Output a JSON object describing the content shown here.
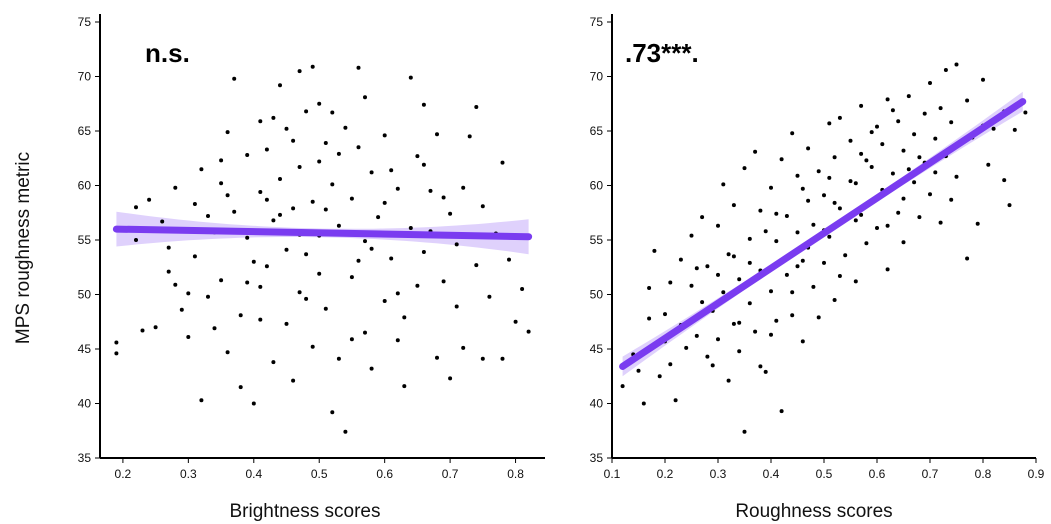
{
  "figure": {
    "ylabel": "MPS roughness metric"
  },
  "chart_data": [
    {
      "type": "scatter",
      "title": "",
      "annotation": "n.s.",
      "xlabel": "Brightness scores",
      "ylabel": "MPS roughness metric",
      "xlim": [
        0.165,
        0.845
      ],
      "ylim": [
        35,
        75
      ],
      "xticks": [
        "0.2",
        "0.3",
        "0.4",
        "0.5",
        "0.6",
        "0.7",
        "0.8"
      ],
      "yticks": [
        "35",
        "40",
        "45",
        "50",
        "55",
        "60",
        "65",
        "70",
        "75"
      ],
      "grid": false,
      "colors": {
        "points": "#000000",
        "fit": "#7a3cf0",
        "band": "#d9c9fb"
      },
      "fit": {
        "x": [
          0.19,
          0.82
        ],
        "y": [
          56.0,
          55.3
        ],
        "ci_halfwidth_ends": 1.6,
        "ci_halfwidth_center": 0.4
      },
      "points": [
        [
          0.19,
          45.6
        ],
        [
          0.19,
          44.6
        ],
        [
          0.22,
          58
        ],
        [
          0.22,
          55
        ],
        [
          0.23,
          46.7
        ],
        [
          0.25,
          47
        ],
        [
          0.24,
          58.7
        ],
        [
          0.26,
          56.7
        ],
        [
          0.27,
          54.3
        ],
        [
          0.27,
          52.1
        ],
        [
          0.28,
          59.8
        ],
        [
          0.28,
          50.9
        ],
        [
          0.29,
          48.6
        ],
        [
          0.3,
          50.1
        ],
        [
          0.3,
          46.1
        ],
        [
          0.31,
          58.3
        ],
        [
          0.31,
          53.5
        ],
        [
          0.32,
          61.5
        ],
        [
          0.32,
          40.3
        ],
        [
          0.33,
          57.2
        ],
        [
          0.33,
          49.8
        ],
        [
          0.34,
          55.7
        ],
        [
          0.34,
          46.9
        ],
        [
          0.35,
          60.2
        ],
        [
          0.35,
          51.3
        ],
        [
          0.36,
          64.9
        ],
        [
          0.36,
          44.7
        ],
        [
          0.37,
          69.8
        ],
        [
          0.37,
          57.6
        ],
        [
          0.38,
          48.1
        ],
        [
          0.38,
          41.5
        ],
        [
          0.39,
          62.8
        ],
        [
          0.39,
          55.2
        ],
        [
          0.4,
          53
        ],
        [
          0.4,
          40
        ],
        [
          0.41,
          65.9
        ],
        [
          0.41,
          59.4
        ],
        [
          0.41,
          47.7
        ],
        [
          0.42,
          63.3
        ],
        [
          0.42,
          52.6
        ],
        [
          0.43,
          66.2
        ],
        [
          0.43,
          56.8
        ],
        [
          0.43,
          43.8
        ],
        [
          0.44,
          69.2
        ],
        [
          0.44,
          60.6
        ],
        [
          0.45,
          54.1
        ],
        [
          0.45,
          47.3
        ],
        [
          0.46,
          64.1
        ],
        [
          0.46,
          57.9
        ],
        [
          0.46,
          42.1
        ],
        [
          0.47,
          70.5
        ],
        [
          0.47,
          61.7
        ],
        [
          0.47,
          50.2
        ],
        [
          0.48,
          66.8
        ],
        [
          0.48,
          53.7
        ],
        [
          0.49,
          70.9
        ],
        [
          0.49,
          58.5
        ],
        [
          0.49,
          45.2
        ],
        [
          0.5,
          67.5
        ],
        [
          0.5,
          62.2
        ],
        [
          0.5,
          55.4
        ],
        [
          0.51,
          63.9
        ],
        [
          0.51,
          48.7
        ],
        [
          0.52,
          39.2
        ],
        [
          0.52,
          60.1
        ],
        [
          0.53,
          56.3
        ],
        [
          0.53,
          44.1
        ],
        [
          0.54,
          37.4
        ],
        [
          0.54,
          65.3
        ],
        [
          0.55,
          58.8
        ],
        [
          0.55,
          51.6
        ],
        [
          0.56,
          70.8
        ],
        [
          0.56,
          63.5
        ],
        [
          0.57,
          54.9
        ],
        [
          0.57,
          46.5
        ],
        [
          0.58,
          61.2
        ],
        [
          0.58,
          43.2
        ],
        [
          0.59,
          57.1
        ],
        [
          0.6,
          49.4
        ],
        [
          0.6,
          64.6
        ],
        [
          0.61,
          53.3
        ],
        [
          0.62,
          59.7
        ],
        [
          0.62,
          45.8
        ],
        [
          0.63,
          41.6
        ],
        [
          0.64,
          69.9
        ],
        [
          0.64,
          56.1
        ],
        [
          0.65,
          62.7
        ],
        [
          0.65,
          50.8
        ],
        [
          0.66,
          67.4
        ],
        [
          0.66,
          53.9
        ],
        [
          0.67,
          59.5
        ],
        [
          0.68,
          44.2
        ],
        [
          0.68,
          64.7
        ],
        [
          0.69,
          51.2
        ],
        [
          0.7,
          42.3
        ],
        [
          0.7,
          57.4
        ],
        [
          0.71,
          48.9
        ],
        [
          0.72,
          59.8
        ],
        [
          0.72,
          45.1
        ],
        [
          0.73,
          64.5
        ],
        [
          0.74,
          67.2
        ],
        [
          0.74,
          52.7
        ],
        [
          0.75,
          44.1
        ],
        [
          0.75,
          58.1
        ],
        [
          0.76,
          49.8
        ],
        [
          0.77,
          55.6
        ],
        [
          0.78,
          62.1
        ],
        [
          0.78,
          44.1
        ],
        [
          0.79,
          53.2
        ],
        [
          0.8,
          47.5
        ],
        [
          0.81,
          50.5
        ],
        [
          0.82,
          46.6
        ],
        [
          0.82,
          55.2
        ],
        [
          0.35,
          62.3
        ],
        [
          0.42,
          58.7
        ],
        [
          0.48,
          49.6
        ],
        [
          0.53,
          62.9
        ],
        [
          0.58,
          54.2
        ],
        [
          0.63,
          47.9
        ],
        [
          0.39,
          51.1
        ],
        [
          0.44,
          57.3
        ],
        [
          0.5,
          51.9
        ],
        [
          0.55,
          45.9
        ],
        [
          0.6,
          58.4
        ],
        [
          0.66,
          61.9
        ],
        [
          0.71,
          54.6
        ],
        [
          0.45,
          65.2
        ],
        [
          0.52,
          66.7
        ],
        [
          0.57,
          68.1
        ],
        [
          0.62,
          50.1
        ],
        [
          0.67,
          55.8
        ],
        [
          0.36,
          59.1
        ],
        [
          0.41,
          50.7
        ],
        [
          0.47,
          55.5
        ],
        [
          0.51,
          57.8
        ],
        [
          0.56,
          53.1
        ],
        [
          0.61,
          61.4
        ],
        [
          0.69,
          58.9
        ]
      ]
    },
    {
      "type": "scatter",
      "title": "",
      "annotation": ".73***.",
      "xlabel": "Roughness scores",
      "ylabel": "",
      "xlim": [
        0.1,
        0.9
      ],
      "ylim": [
        35,
        75
      ],
      "xticks": [
        "0.1",
        "0.2",
        "0.3",
        "0.4",
        "0.5",
        "0.6",
        "0.7",
        "0.8",
        "0.9"
      ],
      "yticks": [
        "35",
        "40",
        "45",
        "50",
        "55",
        "60",
        "65",
        "70",
        "75"
      ],
      "grid": false,
      "colors": {
        "points": "#000000",
        "fit": "#7a3cf0",
        "band": "#d9c9fb"
      },
      "fit": {
        "x": [
          0.12,
          0.875
        ],
        "y": [
          43.4,
          67.7
        ],
        "ci_halfwidth_ends": 0.9,
        "ci_halfwidth_center": 0.3
      },
      "points": [
        [
          0.12,
          41.6
        ],
        [
          0.14,
          44.5
        ],
        [
          0.15,
          43
        ],
        [
          0.16,
          40
        ],
        [
          0.17,
          47.8
        ],
        [
          0.17,
          50.6
        ],
        [
          0.18,
          54
        ],
        [
          0.19,
          42.5
        ],
        [
          0.2,
          45.7
        ],
        [
          0.2,
          48.2
        ],
        [
          0.21,
          51.1
        ],
        [
          0.21,
          43.6
        ],
        [
          0.22,
          40.3
        ],
        [
          0.23,
          47.2
        ],
        [
          0.23,
          53.2
        ],
        [
          0.24,
          45.1
        ],
        [
          0.25,
          50.8
        ],
        [
          0.25,
          55.4
        ],
        [
          0.26,
          46.2
        ],
        [
          0.27,
          49.3
        ],
        [
          0.27,
          57.1
        ],
        [
          0.28,
          44.3
        ],
        [
          0.28,
          52.6
        ],
        [
          0.29,
          48.5
        ],
        [
          0.3,
          56.3
        ],
        [
          0.3,
          45.9
        ],
        [
          0.31,
          50.2
        ],
        [
          0.31,
          60.1
        ],
        [
          0.32,
          53.7
        ],
        [
          0.32,
          42.1
        ],
        [
          0.33,
          47.3
        ],
        [
          0.33,
          58.2
        ],
        [
          0.34,
          51.4
        ],
        [
          0.34,
          44.8
        ],
        [
          0.35,
          61.6
        ],
        [
          0.35,
          37.4
        ],
        [
          0.36,
          55.1
        ],
        [
          0.36,
          49.2
        ],
        [
          0.37,
          46.6
        ],
        [
          0.37,
          63.1
        ],
        [
          0.38,
          57.7
        ],
        [
          0.38,
          52.2
        ],
        [
          0.39,
          42.9
        ],
        [
          0.4,
          59.8
        ],
        [
          0.4,
          50.3
        ],
        [
          0.41,
          54.9
        ],
        [
          0.41,
          47.6
        ],
        [
          0.42,
          62.4
        ],
        [
          0.42,
          39.3
        ],
        [
          0.43,
          57.2
        ],
        [
          0.43,
          51.8
        ],
        [
          0.44,
          64.8
        ],
        [
          0.44,
          48.1
        ],
        [
          0.45,
          55.7
        ],
        [
          0.45,
          60.9
        ],
        [
          0.46,
          53.1
        ],
        [
          0.46,
          45.7
        ],
        [
          0.47,
          58.6
        ],
        [
          0.47,
          63.4
        ],
        [
          0.48,
          50.7
        ],
        [
          0.48,
          56.4
        ],
        [
          0.49,
          61.3
        ],
        [
          0.49,
          47.9
        ],
        [
          0.5,
          59.1
        ],
        [
          0.5,
          52.9
        ],
        [
          0.51,
          65.7
        ],
        [
          0.51,
          55.3
        ],
        [
          0.52,
          62.6
        ],
        [
          0.52,
          49.5
        ],
        [
          0.53,
          57.9
        ],
        [
          0.53,
          66.2
        ],
        [
          0.54,
          53.6
        ],
        [
          0.55,
          60.4
        ],
        [
          0.55,
          64.1
        ],
        [
          0.56,
          56.8
        ],
        [
          0.56,
          51.2
        ],
        [
          0.57,
          62.9
        ],
        [
          0.57,
          67.3
        ],
        [
          0.58,
          58.3
        ],
        [
          0.58,
          54.7
        ],
        [
          0.59,
          61.7
        ],
        [
          0.6,
          65.4
        ],
        [
          0.6,
          56.1
        ],
        [
          0.61,
          63.8
        ],
        [
          0.61,
          59.6
        ],
        [
          0.62,
          67.9
        ],
        [
          0.62,
          52.3
        ],
        [
          0.63,
          61.1
        ],
        [
          0.64,
          65.9
        ],
        [
          0.64,
          57.5
        ],
        [
          0.65,
          63.2
        ],
        [
          0.65,
          54.8
        ],
        [
          0.66,
          68.2
        ],
        [
          0.67,
          60.3
        ],
        [
          0.67,
          64.7
        ],
        [
          0.68,
          57.1
        ],
        [
          0.69,
          66.6
        ],
        [
          0.69,
          62.1
        ],
        [
          0.7,
          59.2
        ],
        [
          0.7,
          69.4
        ],
        [
          0.71,
          64.3
        ],
        [
          0.72,
          67.1
        ],
        [
          0.72,
          56.6
        ],
        [
          0.73,
          70.6
        ],
        [
          0.73,
          62.7
        ],
        [
          0.74,
          65.8
        ],
        [
          0.75,
          60.8
        ],
        [
          0.75,
          71.1
        ],
        [
          0.76,
          63.9
        ],
        [
          0.77,
          53.3
        ],
        [
          0.77,
          67.8
        ],
        [
          0.78,
          64.4
        ],
        [
          0.79,
          56.5
        ],
        [
          0.8,
          65.5
        ],
        [
          0.8,
          69.7
        ],
        [
          0.81,
          61.9
        ],
        [
          0.82,
          65.2
        ],
        [
          0.84,
          60.5
        ],
        [
          0.84,
          66.8
        ],
        [
          0.85,
          58.2
        ],
        [
          0.86,
          65.1
        ],
        [
          0.88,
          66.7
        ],
        [
          0.38,
          43.4
        ],
        [
          0.44,
          50.2
        ],
        [
          0.5,
          55.9
        ],
        [
          0.56,
          60.2
        ],
        [
          0.62,
          56.3
        ],
        [
          0.68,
          62.6
        ],
        [
          0.3,
          51.8
        ],
        [
          0.36,
          52.9
        ],
        [
          0.41,
          57.4
        ],
        [
          0.47,
          54.3
        ],
        [
          0.53,
          51.7
        ],
        [
          0.59,
          64.9
        ],
        [
          0.65,
          58.8
        ],
        [
          0.71,
          61.2
        ],
        [
          0.29,
          43.5
        ],
        [
          0.34,
          47.4
        ],
        [
          0.4,
          46.3
        ],
        [
          0.46,
          59.7
        ],
        [
          0.52,
          58.4
        ],
        [
          0.58,
          62.3
        ],
        [
          0.63,
          66.9
        ],
        [
          0.26,
          52.4
        ],
        [
          0.33,
          53.5
        ],
        [
          0.39,
          55.8
        ],
        [
          0.45,
          52.6
        ],
        [
          0.51,
          60.7
        ],
        [
          0.57,
          57.3
        ],
        [
          0.66,
          61.5
        ],
        [
          0.74,
          58.7
        ]
      ]
    }
  ]
}
